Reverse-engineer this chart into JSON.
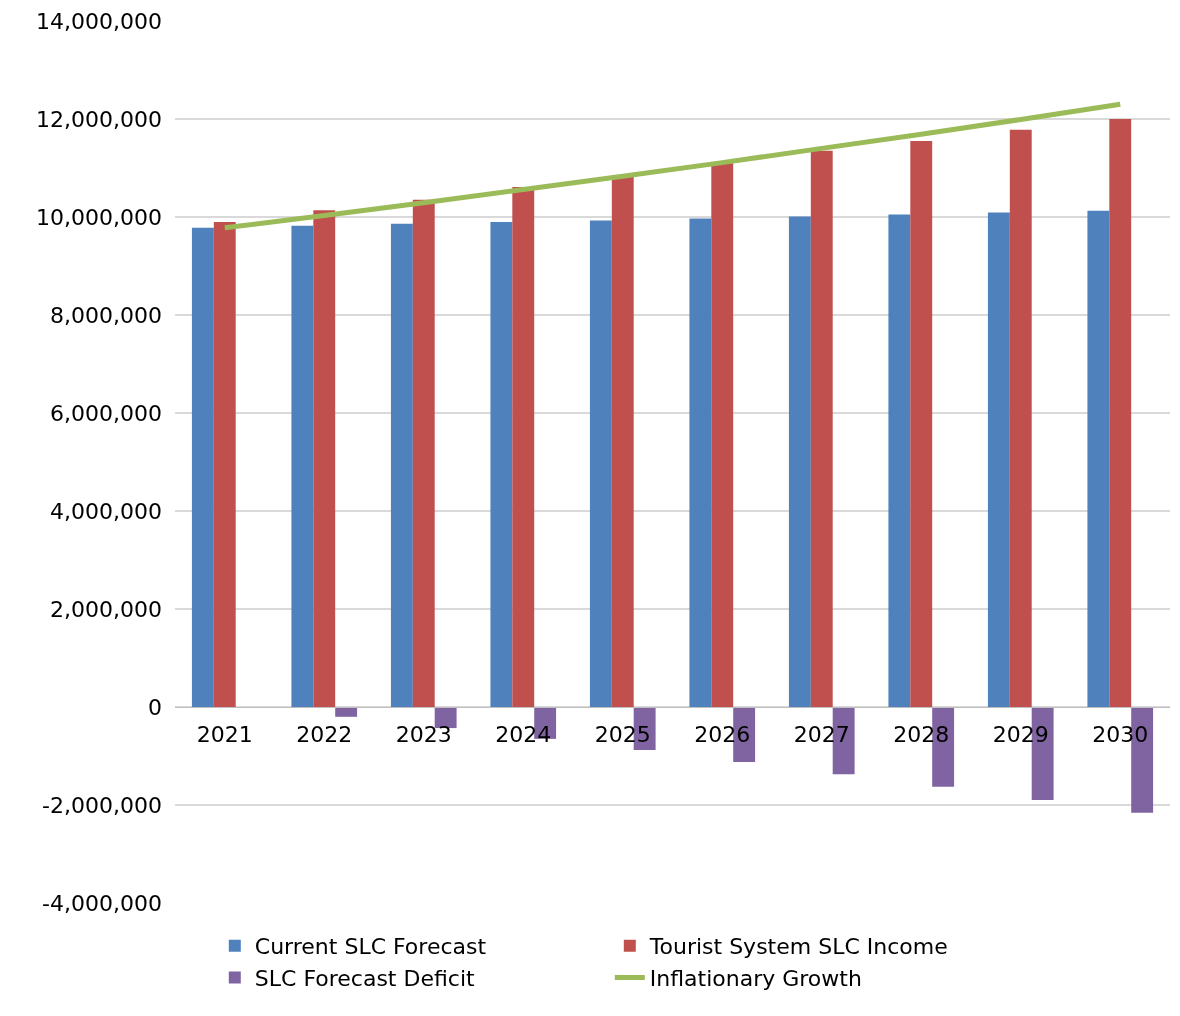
{
  "chart_data": {
    "type": "bar",
    "categories": [
      "2021",
      "2022",
      "2023",
      "2024",
      "2025",
      "2026",
      "2027",
      "2028",
      "2029",
      "2030"
    ],
    "series": [
      {
        "name": "Current SLC Forecast",
        "color": "#4f81bd",
        "values": [
          9780000,
          9820000,
          9860000,
          9900000,
          9930000,
          9970000,
          10010000,
          10050000,
          10090000,
          10130000
        ]
      },
      {
        "name": "Tourist System SLC Income",
        "color": "#c0504d",
        "values": [
          9900000,
          10140000,
          10350000,
          10610000,
          10840000,
          11100000,
          11350000,
          11550000,
          11780000,
          12000000
        ]
      },
      {
        "name": "SLC Forecast Deficit",
        "color": "#8064a2",
        "values": [
          0,
          -200000,
          -430000,
          -650000,
          -880000,
          -1120000,
          -1370000,
          -1630000,
          -1900000,
          -2160000
        ]
      },
      {
        "name": "Inflationary Growth",
        "color": "#9bbb59",
        "type": "line",
        "values": [
          9780000,
          10030000,
          10290000,
          10560000,
          10830000,
          11110000,
          11400000,
          11690000,
          11990000,
          12300000
        ]
      }
    ],
    "ylim": [
      -4000000,
      14000000
    ],
    "yticks": [
      {
        "value": -4000000,
        "label": "-4,000,000"
      },
      {
        "value": -2000000,
        "label": "-2,000,000"
      },
      0,
      {
        "value": 2000000,
        "label": "2,000,000"
      },
      {
        "value": 4000000,
        "label": "4,000,000"
      },
      {
        "value": 6000000,
        "label": "6,000,000"
      },
      {
        "value": 8000000,
        "label": "8,000,000"
      },
      {
        "value": 10000000,
        "label": "10,000,000"
      },
      {
        "value": 12000000,
        "label": "12,000,000"
      },
      {
        "value": 14000000,
        "label": "14,000,000"
      }
    ],
    "grid": "y",
    "legend": "bottom",
    "marker": "none"
  }
}
